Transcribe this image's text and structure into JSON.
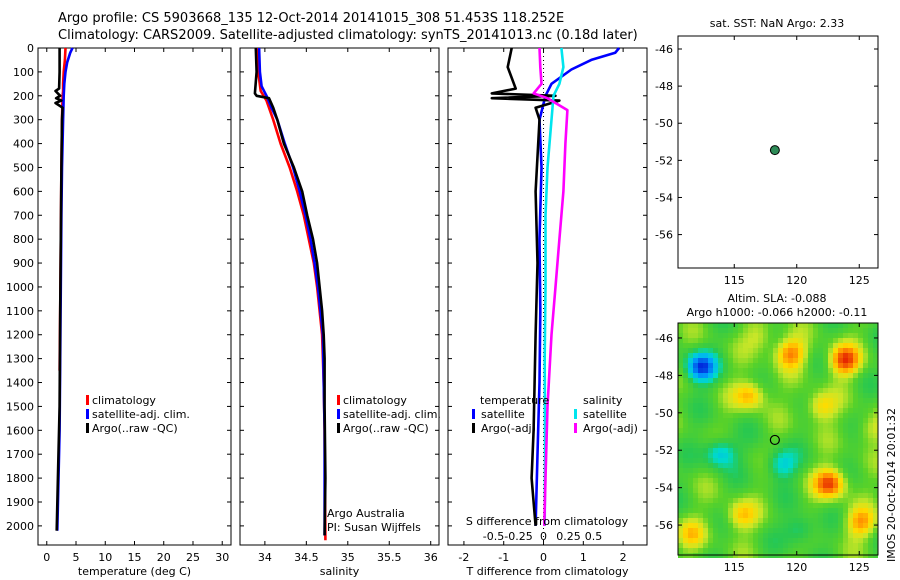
{
  "header": {
    "line1": "Argo profile: CS 5903668_135 12-Oct-2014 20141015_308 51.453S 118.252E",
    "line2": "Climatology: CARS2009. Satellite-adjusted climatology: synTS_20141013.nc (0.18d later)"
  },
  "colors": {
    "climatology": "#ff0000",
    "satellite": "#0000ff",
    "argo": "#000000",
    "cyan": "#00e5ee",
    "magenta": "#ff00ff",
    "marker": "#2e8b57"
  },
  "depth_axis": {
    "ticks": [
      "0",
      "100",
      "200",
      "300",
      "400",
      "500",
      "600",
      "700",
      "800",
      "900",
      "1000",
      "1100",
      "1200",
      "1300",
      "1400",
      "1500",
      "1600",
      "1700",
      "1800",
      "1900",
      "2000"
    ]
  },
  "chart_data": [
    {
      "id": "temperature",
      "type": "line",
      "xlabel": "temperature (deg C)",
      "xlim": [
        -1.5,
        31.5
      ],
      "ylim": [
        0,
        2080
      ],
      "xticks": [
        0,
        5,
        10,
        15,
        20,
        25,
        30
      ],
      "xtick_labels": [
        "0",
        "5",
        "10",
        "15",
        "20",
        "25",
        "30"
      ],
      "legend": [
        "climatology",
        "satellite-adj. clim.",
        "Argo(..raw -QC)"
      ],
      "series": [
        {
          "name": "climatology",
          "color": "#ff0000",
          "points": [
            [
              3.2,
              0
            ],
            [
              3.1,
              50
            ],
            [
              2.9,
              100
            ],
            [
              2.8,
              150
            ],
            [
              2.8,
              180
            ],
            [
              2.7,
              200
            ],
            [
              2.6,
              300
            ],
            [
              2.5,
              500
            ],
            [
              2.4,
              800
            ],
            [
              2.3,
              1100
            ],
            [
              2.2,
              1350
            ]
          ]
        },
        {
          "name": "satellite-adj. clim.",
          "color": "#0000ff",
          "points": [
            [
              4.4,
              0
            ],
            [
              4.0,
              20
            ],
            [
              3.5,
              60
            ],
            [
              3.2,
              100
            ],
            [
              3.0,
              150
            ],
            [
              2.9,
              200
            ],
            [
              2.8,
              300
            ],
            [
              2.6,
              500
            ],
            [
              2.5,
              700
            ],
            [
              2.4,
              1000
            ],
            [
              2.3,
              1300
            ],
            [
              2.2,
              1600
            ],
            [
              2.0,
              1800
            ],
            [
              1.8,
              2020
            ]
          ]
        },
        {
          "name": "Argo(..raw -QC)",
          "color": "#000000",
          "points": [
            [
              2.2,
              0
            ],
            [
              2.2,
              100
            ],
            [
              2.1,
              170
            ],
            [
              1.5,
              180
            ],
            [
              2.3,
              200
            ],
            [
              1.6,
              210
            ],
            [
              2.5,
              220
            ],
            [
              1.5,
              230
            ],
            [
              2.7,
              250
            ],
            [
              2.6,
              300
            ],
            [
              2.5,
              500
            ],
            [
              2.4,
              800
            ],
            [
              2.3,
              1100
            ],
            [
              2.2,
              1500
            ],
            [
              1.9,
              1800
            ],
            [
              1.7,
              2020
            ]
          ]
        }
      ]
    },
    {
      "id": "salinity",
      "type": "line",
      "xlabel": "salinity",
      "xlim": [
        33.7,
        36.1
      ],
      "ylim": [
        0,
        2080
      ],
      "xticks": [
        34,
        34.5,
        35,
        35.5,
        36
      ],
      "xtick_labels": [
        "34",
        "34.5",
        "35",
        "35.5",
        "36"
      ],
      "legend": [
        "climatology",
        "satellite-adj. clim.",
        "Argo(..raw -QC)"
      ],
      "series": [
        {
          "name": "climatology",
          "color": "#ff0000",
          "points": [
            [
              33.92,
              0
            ],
            [
              33.92,
              100
            ],
            [
              33.95,
              180
            ],
            [
              34.02,
              220
            ],
            [
              34.1,
              300
            ],
            [
              34.19,
              400
            ],
            [
              34.3,
              500
            ],
            [
              34.39,
              600
            ],
            [
              34.47,
              700
            ],
            [
              34.53,
              800
            ],
            [
              34.59,
              900
            ],
            [
              34.63,
              1000
            ],
            [
              34.66,
              1100
            ],
            [
              34.69,
              1200
            ],
            [
              34.71,
              1400
            ],
            [
              34.72,
              1600
            ],
            [
              34.73,
              2060
            ]
          ]
        },
        {
          "name": "satellite-adj. clim.",
          "color": "#0000ff",
          "points": [
            [
              33.93,
              0
            ],
            [
              33.94,
              100
            ],
            [
              33.96,
              160
            ],
            [
              34.02,
              200
            ],
            [
              34.08,
              250
            ],
            [
              34.15,
              300
            ],
            [
              34.24,
              400
            ],
            [
              34.34,
              500
            ],
            [
              34.42,
              600
            ],
            [
              34.49,
              700
            ],
            [
              34.55,
              800
            ],
            [
              34.6,
              900
            ],
            [
              34.64,
              1000
            ],
            [
              34.67,
              1100
            ],
            [
              34.7,
              1200
            ],
            [
              34.71,
              1400
            ],
            [
              34.72,
              1600
            ],
            [
              34.72,
              2040
            ]
          ]
        },
        {
          "name": "Argo(..raw -QC)",
          "color": "#000000",
          "points": [
            [
              33.89,
              0
            ],
            [
              33.9,
              100
            ],
            [
              33.88,
              190
            ],
            [
              33.9,
              200
            ],
            [
              34.05,
              210
            ],
            [
              34.1,
              250
            ],
            [
              34.15,
              300
            ],
            [
              34.23,
              400
            ],
            [
              34.35,
              500
            ],
            [
              34.45,
              600
            ],
            [
              34.51,
              700
            ],
            [
              34.58,
              800
            ],
            [
              34.63,
              900
            ],
            [
              34.66,
              1000
            ],
            [
              34.69,
              1100
            ],
            [
              34.71,
              1200
            ],
            [
              34.72,
              1300
            ],
            [
              34.72,
              1500
            ],
            [
              34.73,
              1800
            ],
            [
              34.72,
              2040
            ]
          ]
        }
      ],
      "annotation": [
        "Argo Australia",
        "PI: Susan Wijffels"
      ]
    },
    {
      "id": "differences",
      "type": "line",
      "xlabel": "T difference from climatology",
      "top_axis_label": "S difference from climatology",
      "xlim": [
        -2.4,
        2.6
      ],
      "ylim": [
        0,
        2080
      ],
      "xticks": [
        -2,
        -1,
        0,
        1,
        2
      ],
      "xtick_labels": [
        "-2",
        "-1",
        "0",
        "1",
        "2"
      ],
      "top_ticks": [
        -0.5,
        -0.25,
        0,
        0.25,
        0.5
      ],
      "top_tick_labels": [
        "-0.5",
        "-0.25",
        "0",
        "0.25",
        "0.5"
      ],
      "legend_temperature": {
        "title": "temperature",
        "items": [
          "satellite",
          "Argo(-adj)"
        ]
      },
      "legend_salinity": {
        "title": "salinity",
        "items": [
          "satellite",
          "Argo(-adj)"
        ]
      },
      "series": [
        {
          "name": "temperature satellite",
          "color": "#0000ff",
          "points": [
            [
              1.9,
              0
            ],
            [
              1.8,
              20
            ],
            [
              1.2,
              50
            ],
            [
              0.7,
              90
            ],
            [
              0.2,
              150
            ],
            [
              0.05,
              200
            ],
            [
              -0.1,
              300
            ],
            [
              -0.05,
              500
            ],
            [
              -0.1,
              800
            ],
            [
              -0.08,
              1100
            ],
            [
              -0.1,
              1400
            ],
            [
              -0.15,
              1700
            ],
            [
              -0.2,
              2000
            ]
          ]
        },
        {
          "name": "temperature Argo(-adj)",
          "color": "#000000",
          "points": [
            [
              -0.8,
              0
            ],
            [
              -0.9,
              80
            ],
            [
              -0.7,
              170
            ],
            [
              -1.3,
              190
            ],
            [
              0.3,
              200
            ],
            [
              -1.3,
              210
            ],
            [
              0.4,
              220
            ],
            [
              -0.2,
              250
            ],
            [
              -0.1,
              300
            ],
            [
              -0.2,
              600
            ],
            [
              -0.15,
              900
            ],
            [
              -0.2,
              1200
            ],
            [
              -0.25,
              1600
            ],
            [
              -0.3,
              1800
            ],
            [
              -0.2,
              2000
            ]
          ]
        },
        {
          "name": "salinity satellite",
          "color": "#00e5ee",
          "points": [
            [
              0.45,
              0
            ],
            [
              0.5,
              80
            ],
            [
              0.4,
              150
            ],
            [
              0.25,
              200
            ],
            [
              0.2,
              300
            ],
            [
              0.1,
              500
            ],
            [
              0.05,
              700
            ],
            [
              0.05,
              1000
            ],
            [
              0.03,
              1300
            ],
            [
              0.04,
              1700
            ],
            [
              0.03,
              2000
            ]
          ]
        },
        {
          "name": "salinity Argo(-adj)",
          "color": "#ff00ff",
          "points": [
            [
              -0.1,
              0
            ],
            [
              -0.08,
              80
            ],
            [
              -0.05,
              150
            ],
            [
              -0.25,
              190
            ],
            [
              0.1,
              210
            ],
            [
              0.6,
              260
            ],
            [
              0.55,
              400
            ],
            [
              0.5,
              600
            ],
            [
              0.4,
              800
            ],
            [
              0.3,
              1000
            ],
            [
              0.2,
              1200
            ],
            [
              0.1,
              1500
            ],
            [
              0.05,
              1800
            ],
            [
              0.02,
              2000
            ]
          ]
        }
      ]
    },
    {
      "id": "sst_map",
      "type": "scatter",
      "title": "sat. SST: NaN Argo: 2.33",
      "xlim": [
        110.5,
        126.5
      ],
      "ylim": [
        -57.8,
        -45.3
      ],
      "xticks": [
        115,
        120,
        125
      ],
      "xtick_labels": [
        "115",
        "120",
        "125"
      ],
      "yticks": [
        -56,
        -54,
        -52,
        -50,
        -48,
        -46
      ],
      "ytick_labels": [
        "-56",
        "-54",
        "-52",
        "-50",
        "-48",
        "-46"
      ],
      "points": [
        {
          "lon": 118.25,
          "lat": -51.45
        }
      ]
    },
    {
      "id": "sla_map",
      "type": "heatmap",
      "title_line1": "Altim. SLA: -0.088",
      "title_line2": "Argo h1000: -0.066 h2000: -0.11",
      "xlim": [
        110.5,
        126.5
      ],
      "ylim": [
        -57.6,
        -45.2
      ],
      "xticks": [
        115,
        120,
        125
      ],
      "xtick_labels": [
        "115",
        "120",
        "125"
      ],
      "yticks": [
        -56,
        -54,
        -52,
        -50,
        -48,
        -46
      ],
      "ytick_labels": [
        "-56",
        "-54",
        "-52",
        "-50",
        "-48",
        "-46"
      ],
      "marker": {
        "lon": 118.25,
        "lat": -51.45
      },
      "side_label": "IMOS 20-Oct-2014 20:01:32"
    }
  ]
}
